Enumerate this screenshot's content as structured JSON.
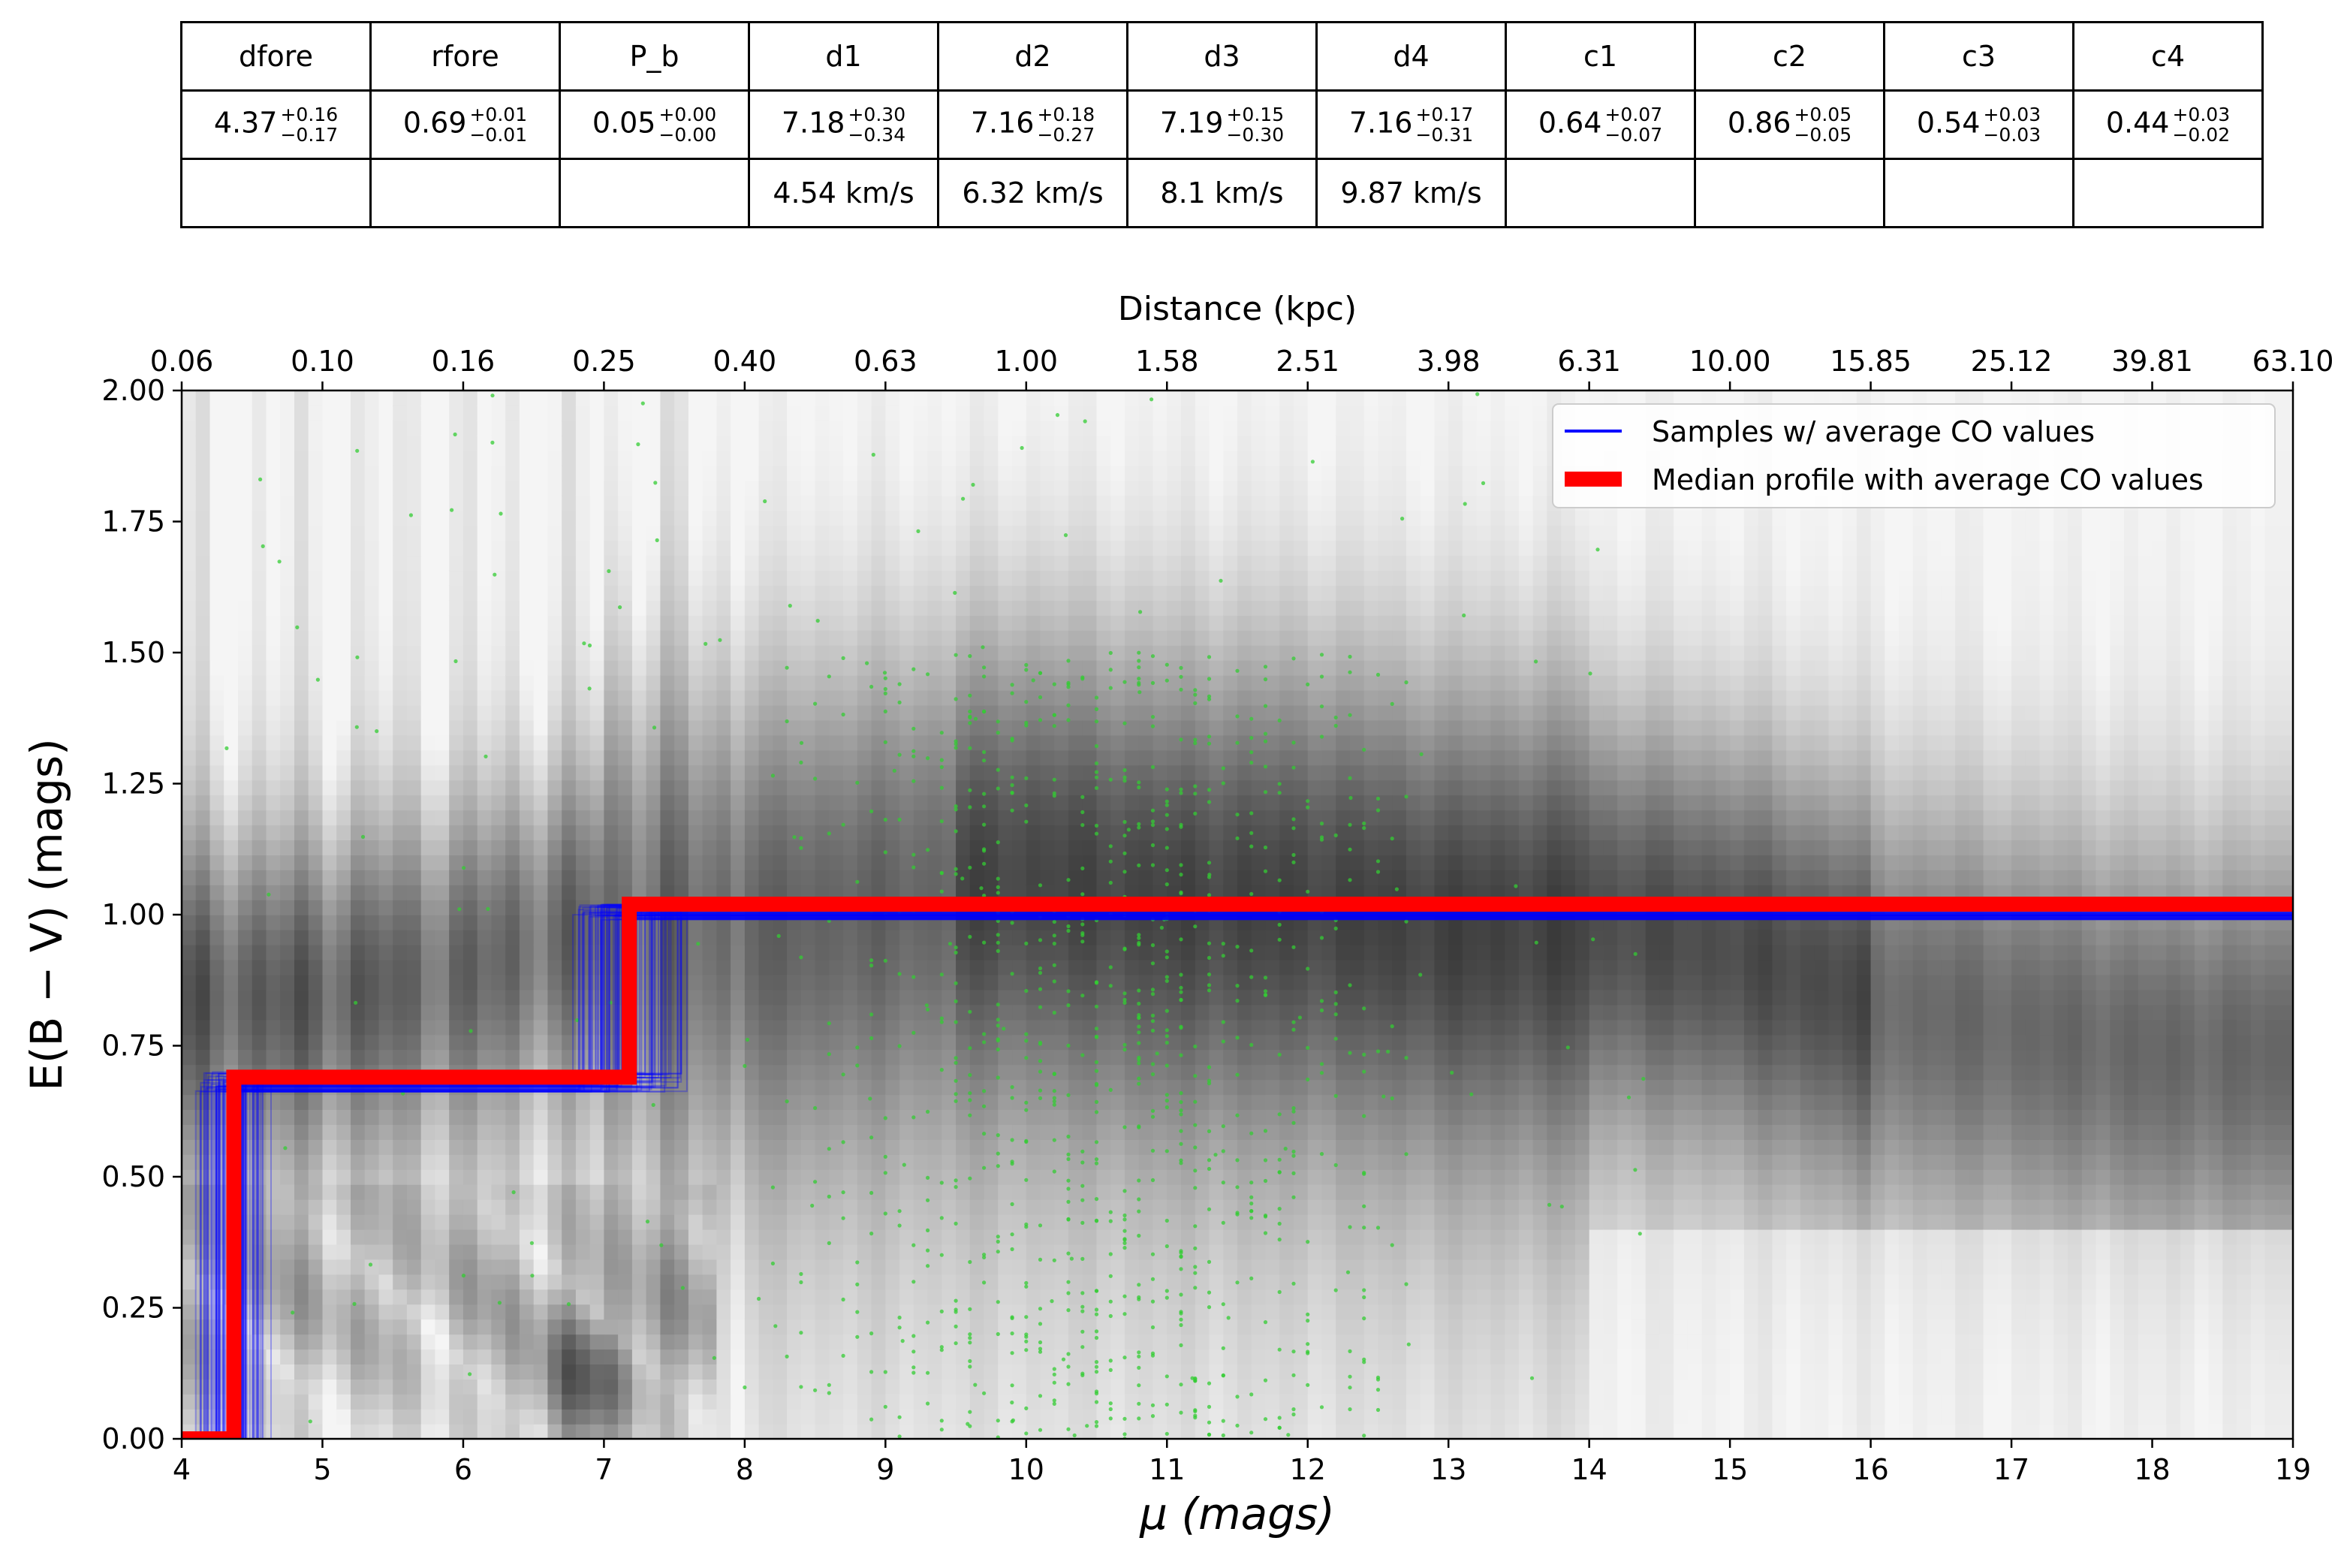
{
  "table": {
    "headers": [
      "dfore",
      "rfore",
      "P_b",
      "d1",
      "d2",
      "d3",
      "d4",
      "c1",
      "c2",
      "c3",
      "c4"
    ],
    "values": [
      {
        "v": "4.37",
        "up": "+0.16",
        "lo": "−0.17"
      },
      {
        "v": "0.69",
        "up": "+0.01",
        "lo": "−0.01"
      },
      {
        "v": "0.05",
        "up": "+0.00",
        "lo": "−0.00"
      },
      {
        "v": "7.18",
        "up": "+0.30",
        "lo": "−0.34"
      },
      {
        "v": "7.16",
        "up": "+0.18",
        "lo": "−0.27"
      },
      {
        "v": "7.19",
        "up": "+0.15",
        "lo": "−0.30"
      },
      {
        "v": "7.16",
        "up": "+0.17",
        "lo": "−0.31"
      },
      {
        "v": "0.64",
        "up": "+0.07",
        "lo": "−0.07"
      },
      {
        "v": "0.86",
        "up": "+0.05",
        "lo": "−0.05"
      },
      {
        "v": "0.54",
        "up": "+0.03",
        "lo": "−0.03"
      },
      {
        "v": "0.44",
        "up": "+0.03",
        "lo": "−0.02"
      }
    ],
    "velocities": [
      "",
      "",
      "",
      "4.54 km/s",
      "6.32 km/s",
      "8.1 km/s",
      "9.87 km/s",
      "",
      "",
      "",
      ""
    ]
  },
  "chart_data": {
    "type": "line",
    "xlabel": "μ (mags)",
    "ylabel": "E(B − V) (mags)",
    "top_xlabel": "Distance (kpc)",
    "xlim": [
      4,
      19
    ],
    "ylim": [
      0,
      2
    ],
    "x_ticks": [
      4,
      5,
      6,
      7,
      8,
      9,
      10,
      11,
      12,
      13,
      14,
      15,
      16,
      17,
      18,
      19
    ],
    "y_ticks": [
      "0.00",
      "0.25",
      "0.50",
      "0.75",
      "1.00",
      "1.25",
      "1.50",
      "1.75",
      "2.00"
    ],
    "top_x_ticks": [
      "0.06",
      "0.10",
      "0.16",
      "0.25",
      "0.40",
      "0.63",
      "1.00",
      "1.58",
      "2.51",
      "3.98",
      "6.31",
      "10.00",
      "15.85",
      "25.12",
      "39.81",
      "63.10"
    ],
    "legend": {
      "location": "upper right",
      "entries": [
        {
          "label": "Samples  w/ average CO values",
          "color": "#0000ff"
        },
        {
          "label": "Median profile with average CO values",
          "color": "#ff0000"
        }
      ]
    },
    "series": [
      {
        "name": "Median profile with average CO values",
        "color": "#ff0000",
        "x": [
          4.0,
          4.37,
          4.37,
          7.18,
          7.18,
          19.0
        ],
        "y": [
          0.0,
          0.0,
          0.69,
          0.69,
          1.02,
          1.02
        ]
      }
    ],
    "samples": {
      "name": "Samples  w/ average CO values",
      "color": "#0000ff",
      "step1_x_range": [
        4.05,
        4.7
      ],
      "step1_y_range": [
        0.66,
        0.7
      ],
      "step2_x_range": [
        6.6,
        7.65
      ],
      "step2_y_range": [
        0.99,
        1.02
      ]
    },
    "stars": {
      "color": "#33cc33",
      "x_range": [
        4.3,
        14.6
      ],
      "y_range": [
        0.0,
        2.0
      ],
      "dense_x_range": [
        8.0,
        13.0
      ],
      "dense_y_range": [
        0.0,
        1.5
      ]
    },
    "density_background": {
      "colormap": "grayscale",
      "dark_band_center": [
        [
          4.0,
          0.85
        ],
        [
          5.0,
          0.85
        ],
        [
          6.0,
          0.9
        ],
        [
          7.0,
          1.0
        ],
        [
          8.0,
          1.0
        ],
        [
          9.0,
          1.05
        ],
        [
          10.0,
          1.1
        ],
        [
          11.0,
          1.05
        ],
        [
          12.0,
          1.05
        ],
        [
          13.0,
          1.0
        ],
        [
          14.0,
          1.0
        ],
        [
          15.0,
          0.95
        ],
        [
          16.0,
          0.85
        ],
        [
          17.0,
          0.8
        ],
        [
          18.0,
          0.75
        ],
        [
          19.0,
          0.75
        ]
      ],
      "dark_spot": [
        6.9,
        0.1
      ]
    }
  }
}
